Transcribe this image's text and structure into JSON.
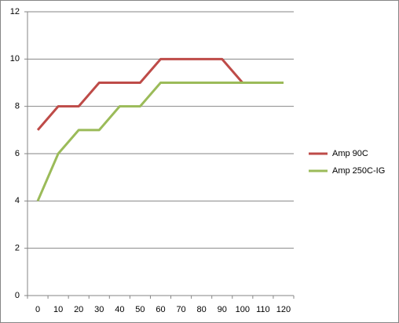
{
  "chart_data": {
    "type": "line",
    "categories": [
      "0",
      "10",
      "20",
      "30",
      "40",
      "50",
      "60",
      "70",
      "80",
      "90",
      "100",
      "110",
      "120"
    ],
    "series": [
      {
        "name": "Amp 90C",
        "color": "#be4b48",
        "values": [
          7,
          8,
          8,
          9,
          9,
          9,
          10,
          10,
          10,
          10,
          9,
          9,
          9
        ]
      },
      {
        "name": "Amp 250C-IG",
        "color": "#9bbb59",
        "values": [
          4,
          6,
          7,
          7,
          8,
          8,
          9,
          9,
          9,
          9,
          9,
          9,
          9
        ]
      }
    ],
    "ylim": [
      0,
      12
    ],
    "yticks": [
      0,
      2,
      4,
      6,
      8,
      10,
      12
    ],
    "grid": true,
    "legend": "right"
  }
}
